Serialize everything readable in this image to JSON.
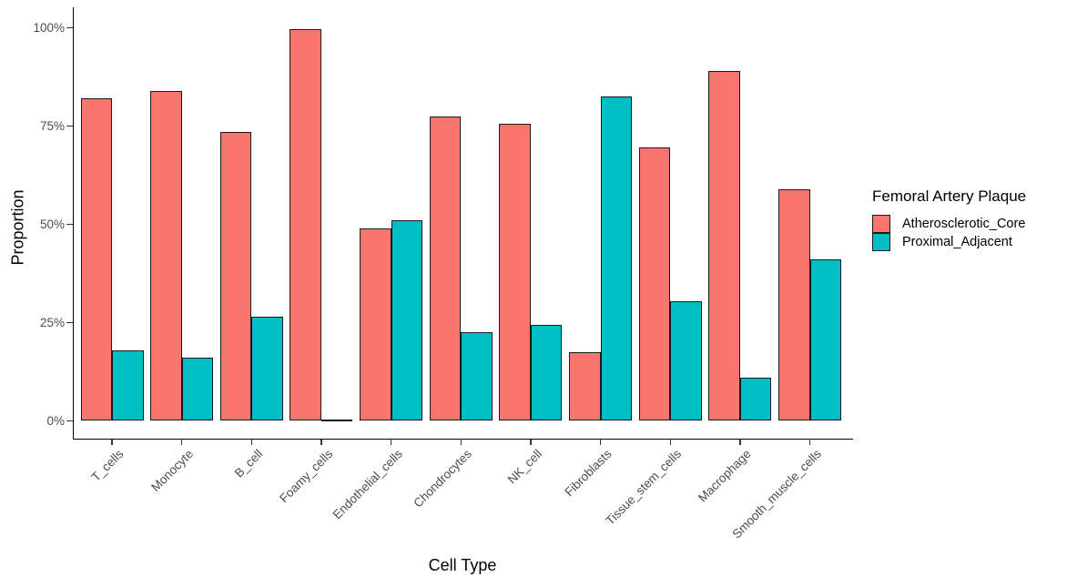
{
  "chart_data": {
    "type": "bar",
    "title": "",
    "xlabel": "Cell Type",
    "ylabel": "Proportion",
    "categories": [
      "T_cells",
      "Monocyte",
      "B_cell",
      "Foamy_cells",
      "Endothelial_cells",
      "Chondrocytes",
      "NK_cell",
      "Fibroblasts",
      "Tissue_stem_cells",
      "Macrophage",
      "Smooth_muscle_cells"
    ],
    "series": [
      {
        "name": "Atherosclerotic_Core",
        "color": "#F8766D",
        "values": [
          82,
          84,
          73.5,
          99.7,
          49,
          77.5,
          75.5,
          17.5,
          69.5,
          89,
          59
        ]
      },
      {
        "name": "Proximal_Adjacent",
        "color": "#00BFC4",
        "values": [
          18,
          16,
          26.5,
          0.3,
          51,
          22.5,
          24.5,
          82.5,
          30.5,
          11,
          41
        ]
      }
    ],
    "legend": {
      "title": "Femoral Artery Plaque",
      "position": "right"
    },
    "y_axis": {
      "tick_values": [
        0,
        25,
        50,
        75,
        100
      ],
      "tick_labels": [
        "0%",
        "25%",
        "50%",
        "75%",
        "100%"
      ],
      "range": [
        0,
        100
      ],
      "unit": "percent"
    },
    "grid": false
  },
  "colors": {
    "background": "#ffffff",
    "axis_text": "#4d4d4d",
    "axis_title": "#000000",
    "axis_line": "#000000",
    "bar_border": "#1a1a1a"
  }
}
